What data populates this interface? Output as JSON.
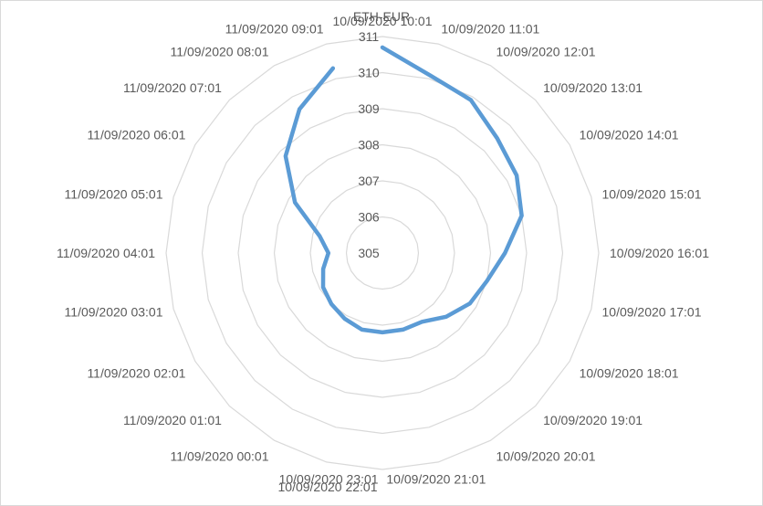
{
  "chart_data": {
    "type": "radar",
    "title": "ETH-EUR",
    "categories": [
      "10/09/2020 10:01",
      "10/09/2020 11:01",
      "10/09/2020 12:01",
      "10/09/2020 13:01",
      "10/09/2020 14:01",
      "10/09/2020 15:01",
      "10/09/2020 16:01",
      "10/09/2020 17:01",
      "10/09/2020 18:01",
      "10/09/2020 19:01",
      "10/09/2020 20:01",
      "10/09/2020 21:01",
      "10/09/2020 22:01",
      "10/09/2020 23:01",
      "11/09/2020 00:01",
      "11/09/2020 01:01",
      "11/09/2020 02:01",
      "11/09/2020 03:01",
      "11/09/2020 04:01",
      "11/09/2020 05:01",
      "11/09/2020 06:01",
      "11/09/2020 07:01",
      "11/09/2020 08:01",
      "11/09/2020 09:01"
    ],
    "series": [
      {
        "values": [
          310.7,
          310.1,
          309.9,
          309.5,
          309.3,
          309.0,
          308.4,
          308.0,
          307.8,
          307.5,
          307.2,
          307.2,
          307.2,
          307.2,
          307.1,
          307.0,
          306.9,
          306.7,
          306.5,
          306.8,
          307.8,
          308.8,
          309.6,
          310.3
        ],
        "color": "#5b9bd5"
      }
    ],
    "rlim": [
      305,
      311
    ],
    "ticks": [
      "305",
      "306",
      "307",
      "308",
      "309",
      "310",
      "311"
    ],
    "grid": true,
    "legend": "none"
  }
}
